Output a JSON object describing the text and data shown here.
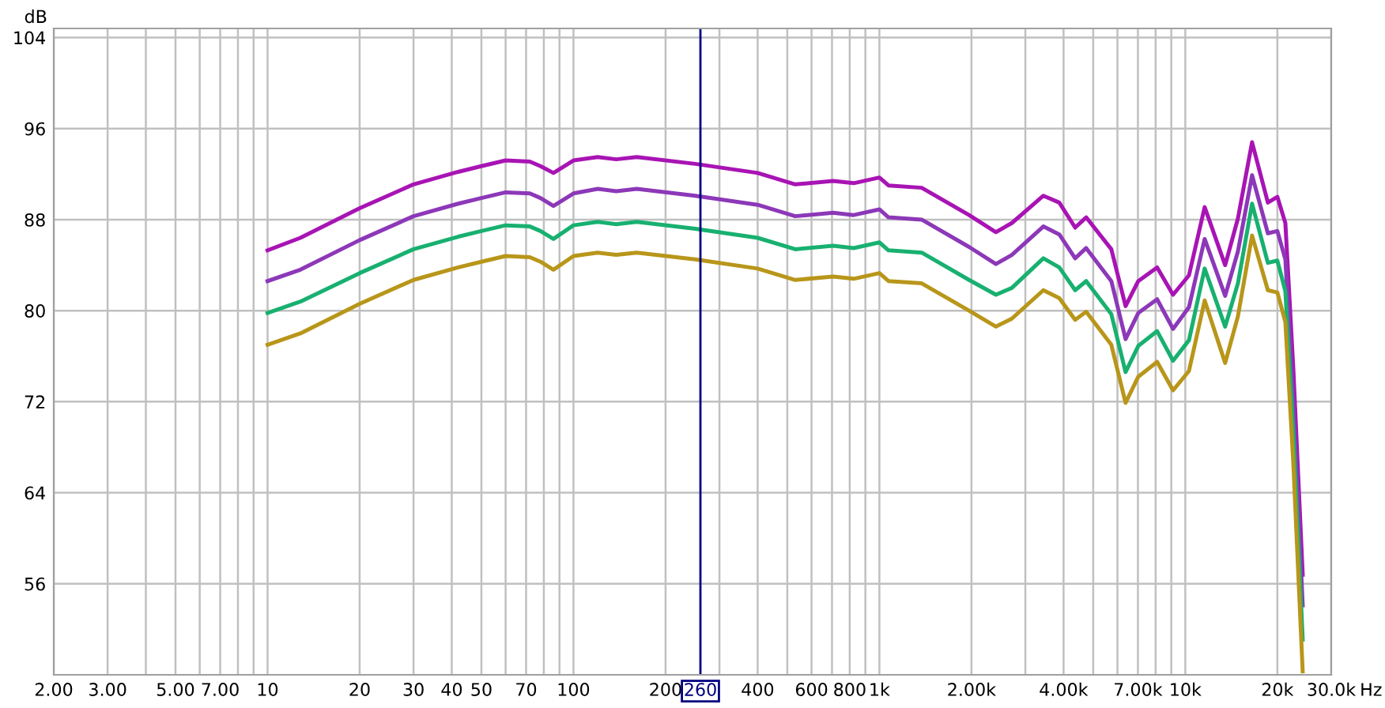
{
  "chart_data": {
    "type": "line",
    "ylabel": "dB",
    "xlabel": "Hz",
    "log": "x",
    "grid": true,
    "x": [
      10,
      12.8,
      20,
      30,
      42,
      50,
      60,
      72,
      78,
      86,
      100,
      120,
      138,
      161,
      250,
      400,
      531,
      706,
      824,
      1000,
      1071,
      1375,
      1964,
      2404,
      2710,
      3436,
      3873,
      4365,
      4742,
      5730,
      6380,
      7020,
      8090,
      9120,
      10280,
      11570,
      13500,
      14860,
      16530,
      18620,
      20000,
      21240,
      22550,
      24200
    ],
    "series": [
      {
        "color": "#a814b4",
        "values": [
          85.3,
          86.4,
          89.0,
          91.1,
          92.2,
          92.7,
          93.2,
          93.1,
          92.7,
          92.1,
          93.2,
          93.5,
          93.3,
          93.5,
          92.9,
          92.1,
          91.1,
          91.4,
          91.2,
          91.7,
          91.0,
          90.8,
          88.4,
          86.9,
          87.7,
          90.1,
          89.5,
          87.3,
          88.2,
          85.4,
          80.4,
          82.6,
          83.8,
          81.4,
          83.1,
          89.1,
          84.0,
          88.1,
          94.8,
          89.5,
          90.0,
          87.7,
          74.9,
          56.8
        ]
      },
      {
        "color": "#8c38b8",
        "values": [
          82.6,
          83.6,
          86.2,
          88.3,
          89.4,
          89.9,
          90.4,
          90.3,
          89.9,
          89.2,
          90.3,
          90.7,
          90.5,
          90.7,
          90.1,
          89.3,
          88.3,
          88.6,
          88.4,
          88.9,
          88.2,
          88.0,
          85.6,
          84.1,
          84.9,
          87.4,
          86.7,
          84.6,
          85.5,
          82.6,
          77.5,
          79.8,
          81.0,
          78.4,
          80.3,
          86.3,
          81.3,
          85.2,
          91.9,
          86.8,
          87.0,
          84.5,
          72.1,
          54.1
        ]
      },
      {
        "color": "#18b070",
        "values": [
          79.8,
          80.8,
          83.3,
          85.4,
          86.5,
          87.0,
          87.5,
          87.4,
          87.0,
          86.3,
          87.5,
          87.8,
          87.6,
          87.8,
          87.2,
          86.4,
          85.4,
          85.7,
          85.5,
          86.0,
          85.3,
          85.1,
          82.7,
          81.4,
          82.0,
          84.6,
          83.8,
          81.8,
          82.6,
          79.7,
          74.6,
          76.9,
          78.2,
          75.6,
          77.4,
          83.7,
          78.6,
          82.4,
          89.4,
          84.2,
          84.4,
          81.7,
          69.4,
          51.1
        ]
      },
      {
        "color": "#b8961a",
        "values": [
          77.0,
          78.0,
          80.6,
          82.7,
          83.8,
          84.3,
          84.8,
          84.7,
          84.3,
          83.6,
          84.8,
          85.1,
          84.9,
          85.1,
          84.5,
          83.7,
          82.7,
          83.0,
          82.8,
          83.3,
          82.6,
          82.4,
          80.0,
          78.6,
          79.3,
          81.8,
          81.1,
          79.2,
          79.9,
          77.0,
          71.9,
          74.2,
          75.5,
          73.0,
          74.7,
          80.9,
          75.4,
          79.5,
          86.6,
          81.8,
          81.6,
          79.0,
          66.6,
          48.3
        ]
      }
    ],
    "xlim": [
      2,
      30000
    ],
    "ylim": [
      48,
      104.8
    ],
    "yticks": [
      56,
      64,
      72,
      80,
      88,
      96,
      104
    ],
    "xticks": [
      {
        "value": 2,
        "label": "2.00"
      },
      {
        "value": 3,
        "label": "3.00"
      },
      {
        "value": 4,
        "label": null
      },
      {
        "value": 5,
        "label": "5.00"
      },
      {
        "value": 6,
        "label": null
      },
      {
        "value": 7,
        "label": "7.00"
      },
      {
        "value": 8,
        "label": null
      },
      {
        "value": 9,
        "label": null
      },
      10,
      20,
      30,
      40,
      50,
      {
        "value": 60,
        "label": null
      },
      70,
      {
        "value": 80,
        "label": null
      },
      {
        "value": 90,
        "label": null
      },
      100,
      200,
      {
        "value": 300,
        "label": null
      },
      400,
      {
        "value": 500,
        "label": null
      },
      600,
      {
        "value": 700,
        "label": null
      },
      800,
      {
        "value": 900,
        "label": null
      },
      {
        "value": 1000,
        "label": "1k"
      },
      {
        "value": 2000,
        "label": "2.00k"
      },
      {
        "value": 3000,
        "label": null
      },
      {
        "value": 4000,
        "label": "4.00k"
      },
      {
        "value": 5000,
        "label": null
      },
      {
        "value": 6000,
        "label": null
      },
      {
        "value": 7000,
        "label": "7.00k"
      },
      {
        "value": 8000,
        "label": null
      },
      {
        "value": 9000,
        "label": null
      },
      {
        "value": 10000,
        "label": "10k"
      },
      {
        "value": 20000,
        "label": "20k"
      },
      {
        "value": 30000,
        "label": "30.0k"
      }
    ],
    "ref_lines": [
      {
        "axis": "x",
        "value": 260,
        "label": "260",
        "color": "#000080"
      }
    ]
  }
}
